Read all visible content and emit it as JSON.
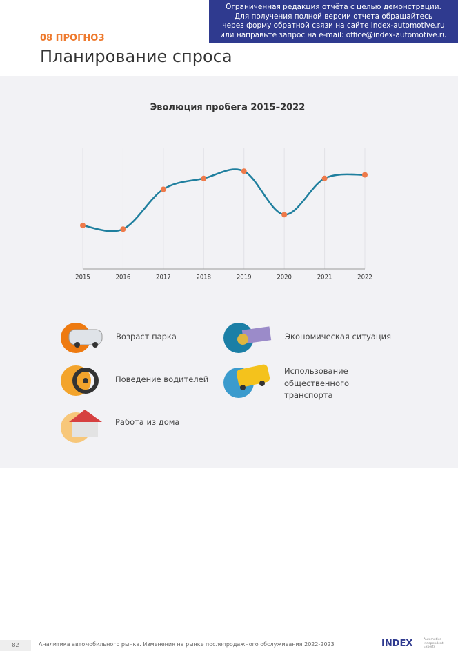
{
  "header": {
    "notice": [
      "Ограниченная редакция отчёта с целью демонстрации.",
      "Для получения полной версии отчета обращайтесь",
      "через форму обратной связи на сайте index-automotive.ru",
      "или направьте запрос на e-mail: office@index-automotive.ru"
    ],
    "section": "08 ПРОГНОЗ",
    "title": "Планирование спроса"
  },
  "chart_data": {
    "type": "line",
    "title": "Эволюция пробега 2015–2022",
    "categories": [
      "2015",
      "2016",
      "2017",
      "2018",
      "2019",
      "2020",
      "2021",
      "2022"
    ],
    "series": [
      {
        "name": "Пробег",
        "color": "#1f7f9e",
        "marker_color": "#ee7a4a",
        "values": [
          36,
          33,
          66,
          75,
          81,
          45,
          75,
          78
        ]
      }
    ],
    "ylim": [
      0,
      100
    ],
    "grid": true
  },
  "factors": [
    "Возраст парка",
    "Экономическая ситуация",
    "Поведение водителей",
    "Использование общественного транспорта",
    "Работа из дома"
  ],
  "footer": {
    "page": "82",
    "text": "Аналитика автомобильного рынка. Изменения на рынке послепродажного обслуживания 2022-2023",
    "logo": "INDEX",
    "logo_sub": [
      "Automotive",
      "Independent",
      "Experts"
    ]
  }
}
